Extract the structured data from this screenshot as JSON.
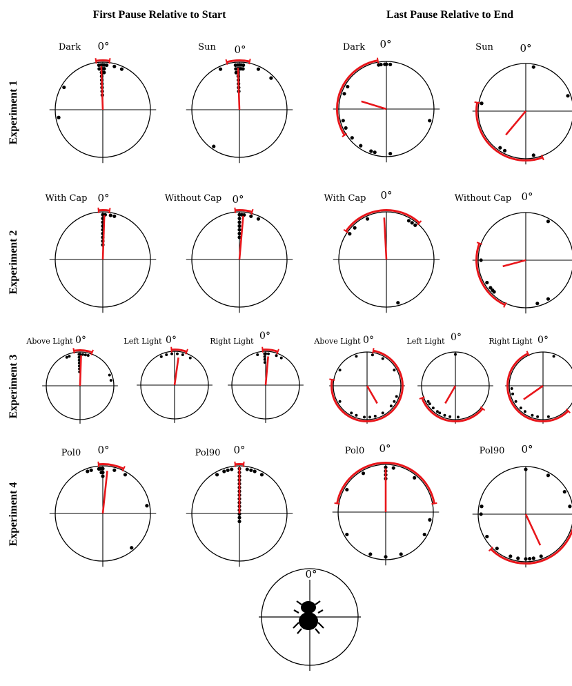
{
  "column_headers": [
    "First Pause Relative to Start",
    "Last Pause Relative to End"
  ],
  "row_headers": [
    "Experiment 1",
    "Experiment 2",
    "Experiment 3",
    "Experiment 4"
  ],
  "zero_label": "0°",
  "colors": {
    "mean_vector": "#e8161b",
    "points": "#000000",
    "axes": "#000000"
  },
  "icons": {
    "reference": "dung-beetle-icon"
  },
  "chart_data": [
    {
      "type": "scatter",
      "panel": "Experiment 1 / First Pause / Dark",
      "condition": "Dark",
      "points_deg": [
        355,
        355,
        358,
        358,
        358,
        358,
        358,
        358,
        358,
        358,
        358,
        2,
        2,
        2,
        5,
        15,
        25,
        300,
        260
      ],
      "mean_angle_deg": 358,
      "mean_vector_length": 0.92,
      "arc_deg": [
        352,
        8
      ]
    },
    {
      "type": "scatter",
      "panel": "Experiment 1 / First Pause / Sun",
      "condition": "Sun",
      "points_deg": [
        355,
        355,
        355,
        358,
        358,
        358,
        358,
        358,
        358,
        358,
        358,
        2,
        2,
        5,
        5,
        25,
        335,
        45,
        215
      ],
      "mean_angle_deg": 358,
      "mean_vector_length": 0.88,
      "arc_deg": [
        345,
        12
      ]
    },
    {
      "type": "scatter",
      "panel": "Experiment 1 / Last Pause / Dark",
      "condition": "Dark",
      "points_deg": [
        350,
        353,
        358,
        0,
        5,
        300,
        290,
        255,
        245,
        230,
        215,
        200,
        195,
        175,
        105
      ],
      "mean_angle_deg": 287,
      "mean_vector_length": 0.55,
      "arc_deg": [
        238,
        350
      ]
    },
    {
      "type": "scatter",
      "panel": "Experiment 1 / Last Pause / Sun",
      "condition": "Sun",
      "points_deg": [
        10,
        280,
        215,
        208,
        170,
        70
      ],
      "mean_angle_deg": 220,
      "mean_vector_length": 0.65,
      "arc_deg": [
        160,
        280
      ]
    },
    {
      "type": "scatter",
      "panel": "Experiment 2 / First Pause / With Cap",
      "condition": "With Cap",
      "points_deg": [
        0,
        0,
        0,
        0,
        0,
        0,
        0,
        0,
        0,
        3,
        10,
        15
      ],
      "mean_angle_deg": 2,
      "mean_vector_length": 0.93,
      "arc_deg": [
        355,
        8
      ]
    },
    {
      "type": "scatter",
      "panel": "Experiment 2 / First Pause / Without Cap",
      "condition": "Without Cap",
      "points_deg": [
        0,
        0,
        0,
        0,
        0,
        0,
        0,
        6,
        15,
        25,
        3
      ],
      "mean_angle_deg": 5,
      "mean_vector_length": 0.92,
      "arc_deg": [
        355,
        15
      ]
    },
    {
      "type": "scatter",
      "panel": "Experiment 2 / Last Pause / With Cap",
      "condition": "With Cap",
      "points_deg": [
        335,
        315,
        305,
        30,
        35,
        40,
        165
      ],
      "mean_angle_deg": 357,
      "mean_vector_length": 0.88,
      "arc_deg": [
        305,
        42
      ]
    },
    {
      "type": "scatter",
      "panel": "Experiment 2 / Last Pause / Without Cap",
      "condition": "Without Cap",
      "points_deg": [
        30,
        270,
        240,
        232,
        228,
        225,
        165,
        150
      ],
      "mean_angle_deg": 255,
      "mean_vector_length": 0.5,
      "arc_deg": [
        205,
        290
      ]
    },
    {
      "type": "scatter",
      "panel": "Experiment 3 / First Pause / Above Light",
      "condition": "Above Light",
      "points_deg": [
        358,
        358,
        358,
        358,
        358,
        358,
        358,
        0,
        5,
        10,
        15,
        335,
        340,
        70,
        80
      ],
      "mean_angle_deg": 2,
      "mean_vector_length": 0.9,
      "arc_deg": [
        350,
        20
      ]
    },
    {
      "type": "scatter",
      "panel": "Experiment 3 / First Pause / Left Light",
      "condition": "Left Light",
      "points_deg": [
        335,
        345,
        355,
        5,
        15,
        30
      ],
      "mean_angle_deg": 8,
      "mean_vector_length": 0.82,
      "arc_deg": [
        355,
        20
      ]
    },
    {
      "type": "scatter",
      "panel": "Experiment 3 / First Pause / Right Light",
      "condition": "Right Light",
      "points_deg": [
        358,
        358,
        358,
        358,
        0,
        5,
        20,
        30,
        345
      ],
      "mean_angle_deg": 5,
      "mean_vector_length": 0.85,
      "arc_deg": [
        355,
        20
      ]
    },
    {
      "type": "scatter",
      "panel": "Experiment 3 / Last Pause / Above Light",
      "condition": "Above Light",
      "points_deg": [
        340,
        10,
        30,
        60,
        110,
        120,
        130,
        150,
        165,
        175,
        185,
        200,
        210,
        240,
        300
      ],
      "mean_angle_deg": 150,
      "mean_vector_length": 0.6,
      "arc_deg": [
        10,
        280
      ]
    },
    {
      "type": "scatter",
      "panel": "Experiment 3 / Last Pause / Left Light",
      "condition": "Left Light",
      "points_deg": [
        0,
        240,
        235,
        225,
        215,
        210,
        200,
        190,
        175
      ],
      "mean_angle_deg": 210,
      "mean_vector_length": 0.6,
      "arc_deg": [
        130,
        250
      ]
    },
    {
      "type": "scatter",
      "panel": "Experiment 3 / Last Pause / Right Light",
      "condition": "Right Light",
      "points_deg": [
        20,
        265,
        255,
        240,
        225,
        215,
        200,
        190,
        170
      ],
      "mean_angle_deg": 235,
      "mean_vector_length": 0.7,
      "arc_deg": [
        135,
        335
      ]
    },
    {
      "type": "scatter",
      "panel": "Experiment 4 / First Pause / Pol0",
      "condition": "Pol0",
      "points_deg": [
        355,
        356,
        357,
        358,
        358,
        359,
        0,
        0,
        0,
        340,
        345,
        15,
        30,
        80,
        140
      ],
      "mean_angle_deg": 6,
      "mean_vector_length": 0.9,
      "arc_deg": [
        355,
        25
      ]
    },
    {
      "type": "scatter",
      "panel": "Experiment 4 / First Pause / Pol90",
      "condition": "Pol90",
      "points_deg": [
        0,
        0,
        0,
        0,
        0,
        0,
        0,
        0,
        0,
        0,
        0,
        0,
        0,
        0,
        0,
        340,
        345,
        350,
        10,
        15,
        20,
        330,
        30
      ],
      "mean_angle_deg": 0,
      "mean_vector_length": 0.97,
      "arc_deg": [
        355,
        5
      ]
    },
    {
      "type": "scatter",
      "panel": "Experiment 4 / Last Pause / Pol0",
      "condition": "Pol0",
      "points_deg": [
        0,
        0,
        0,
        0,
        10,
        40,
        330,
        300,
        240,
        200,
        180,
        160,
        120,
        100
      ],
      "mean_angle_deg": 0,
      "mean_vector_length": 0.92,
      "arc_deg": [
        280,
        80
      ]
    },
    {
      "type": "scatter",
      "panel": "Experiment 4 / Last Pause / Pol90",
      "condition": "Pol90",
      "points_deg": [
        0,
        30,
        60,
        80,
        280,
        270,
        240,
        220,
        200,
        190,
        180,
        175,
        170,
        160
      ],
      "mean_angle_deg": 155,
      "mean_vector_length": 0.72,
      "arc_deg": [
        90,
        225
      ]
    }
  ]
}
